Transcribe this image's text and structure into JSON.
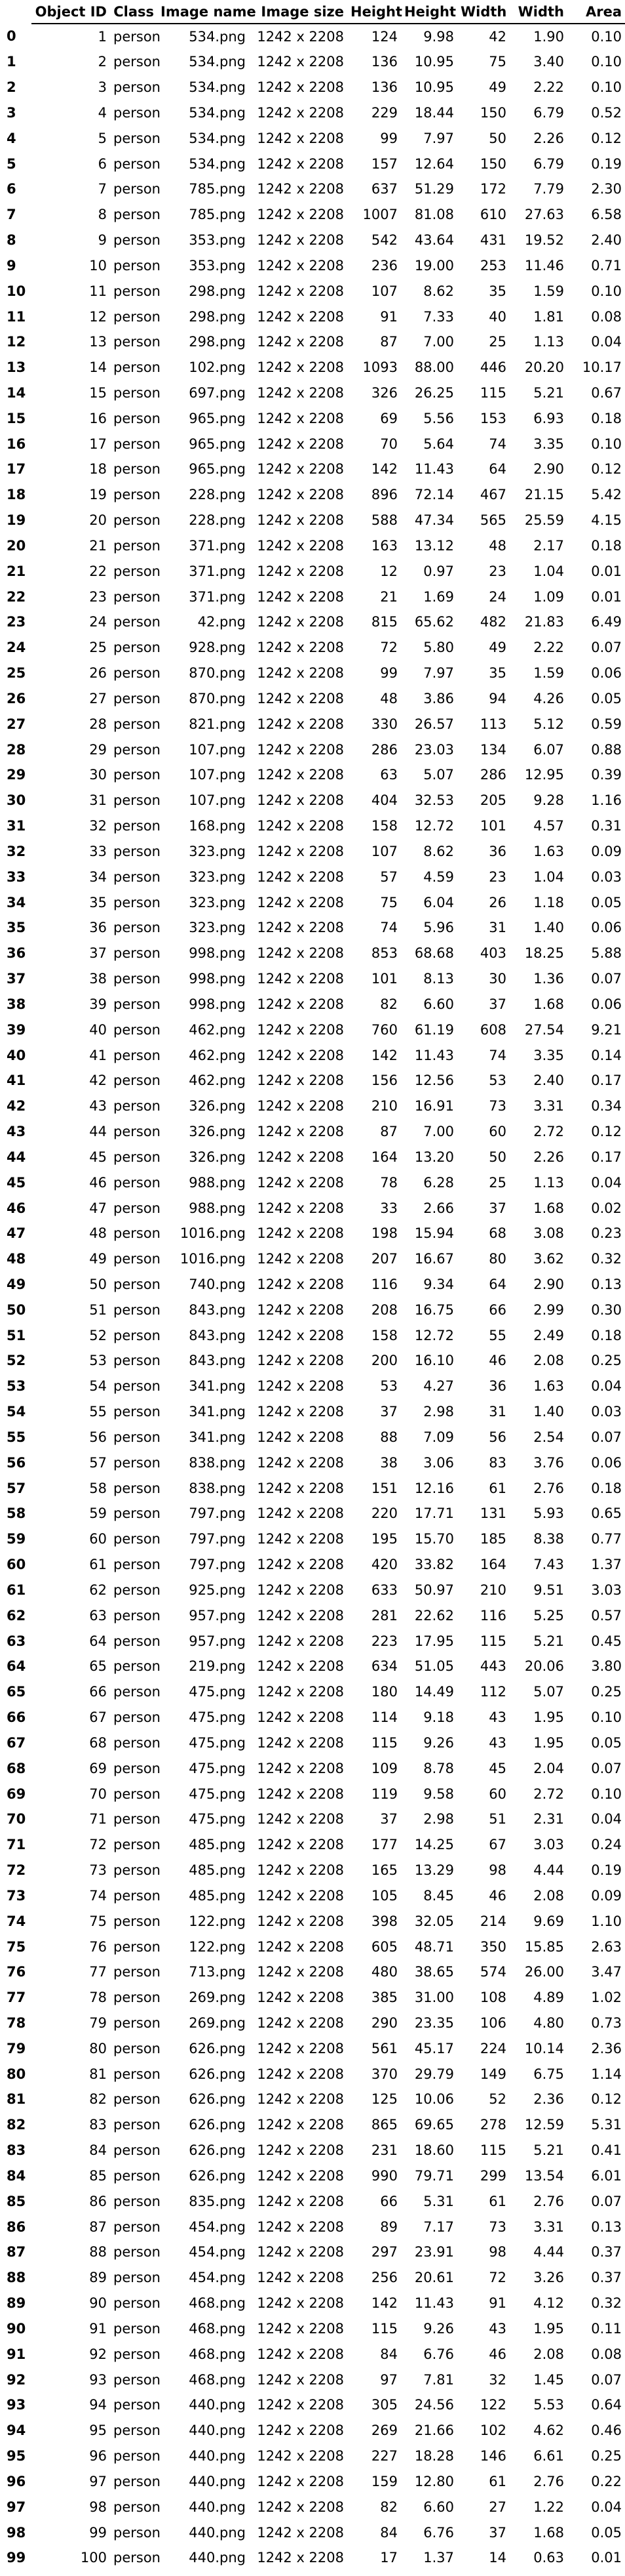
{
  "columns": [
    "Object ID",
    "Class",
    "Image name",
    "Image size",
    "Height",
    "Height",
    "Width",
    "Width",
    "Area"
  ],
  "rows": [
    [
      "0",
      "1",
      "person",
      "534.png",
      "1242 x 2208",
      "124",
      "9.98",
      "42",
      "1.90",
      "0.10"
    ],
    [
      "1",
      "2",
      "person",
      "534.png",
      "1242 x 2208",
      "136",
      "10.95",
      "75",
      "3.40",
      "0.10"
    ],
    [
      "2",
      "3",
      "person",
      "534.png",
      "1242 x 2208",
      "136",
      "10.95",
      "49",
      "2.22",
      "0.10"
    ],
    [
      "3",
      "4",
      "person",
      "534.png",
      "1242 x 2208",
      "229",
      "18.44",
      "150",
      "6.79",
      "0.52"
    ],
    [
      "4",
      "5",
      "person",
      "534.png",
      "1242 x 2208",
      "99",
      "7.97",
      "50",
      "2.26",
      "0.12"
    ],
    [
      "5",
      "6",
      "person",
      "534.png",
      "1242 x 2208",
      "157",
      "12.64",
      "150",
      "6.79",
      "0.19"
    ],
    [
      "6",
      "7",
      "person",
      "785.png",
      "1242 x 2208",
      "637",
      "51.29",
      "172",
      "7.79",
      "2.30"
    ],
    [
      "7",
      "8",
      "person",
      "785.png",
      "1242 x 2208",
      "1007",
      "81.08",
      "610",
      "27.63",
      "6.58"
    ],
    [
      "8",
      "9",
      "person",
      "353.png",
      "1242 x 2208",
      "542",
      "43.64",
      "431",
      "19.52",
      "2.40"
    ],
    [
      "9",
      "10",
      "person",
      "353.png",
      "1242 x 2208",
      "236",
      "19.00",
      "253",
      "11.46",
      "0.71"
    ],
    [
      "10",
      "11",
      "person",
      "298.png",
      "1242 x 2208",
      "107",
      "8.62",
      "35",
      "1.59",
      "0.10"
    ],
    [
      "11",
      "12",
      "person",
      "298.png",
      "1242 x 2208",
      "91",
      "7.33",
      "40",
      "1.81",
      "0.08"
    ],
    [
      "12",
      "13",
      "person",
      "298.png",
      "1242 x 2208",
      "87",
      "7.00",
      "25",
      "1.13",
      "0.04"
    ],
    [
      "13",
      "14",
      "person",
      "102.png",
      "1242 x 2208",
      "1093",
      "88.00",
      "446",
      "20.20",
      "10.17"
    ],
    [
      "14",
      "15",
      "person",
      "697.png",
      "1242 x 2208",
      "326",
      "26.25",
      "115",
      "5.21",
      "0.67"
    ],
    [
      "15",
      "16",
      "person",
      "965.png",
      "1242 x 2208",
      "69",
      "5.56",
      "153",
      "6.93",
      "0.18"
    ],
    [
      "16",
      "17",
      "person",
      "965.png",
      "1242 x 2208",
      "70",
      "5.64",
      "74",
      "3.35",
      "0.10"
    ],
    [
      "17",
      "18",
      "person",
      "965.png",
      "1242 x 2208",
      "142",
      "11.43",
      "64",
      "2.90",
      "0.12"
    ],
    [
      "18",
      "19",
      "person",
      "228.png",
      "1242 x 2208",
      "896",
      "72.14",
      "467",
      "21.15",
      "5.42"
    ],
    [
      "19",
      "20",
      "person",
      "228.png",
      "1242 x 2208",
      "588",
      "47.34",
      "565",
      "25.59",
      "4.15"
    ],
    [
      "20",
      "21",
      "person",
      "371.png",
      "1242 x 2208",
      "163",
      "13.12",
      "48",
      "2.17",
      "0.18"
    ],
    [
      "21",
      "22",
      "person",
      "371.png",
      "1242 x 2208",
      "12",
      "0.97",
      "23",
      "1.04",
      "0.01"
    ],
    [
      "22",
      "23",
      "person",
      "371.png",
      "1242 x 2208",
      "21",
      "1.69",
      "24",
      "1.09",
      "0.01"
    ],
    [
      "23",
      "24",
      "person",
      "42.png",
      "1242 x 2208",
      "815",
      "65.62",
      "482",
      "21.83",
      "6.49"
    ],
    [
      "24",
      "25",
      "person",
      "928.png",
      "1242 x 2208",
      "72",
      "5.80",
      "49",
      "2.22",
      "0.07"
    ],
    [
      "25",
      "26",
      "person",
      "870.png",
      "1242 x 2208",
      "99",
      "7.97",
      "35",
      "1.59",
      "0.06"
    ],
    [
      "26",
      "27",
      "person",
      "870.png",
      "1242 x 2208",
      "48",
      "3.86",
      "94",
      "4.26",
      "0.05"
    ],
    [
      "27",
      "28",
      "person",
      "821.png",
      "1242 x 2208",
      "330",
      "26.57",
      "113",
      "5.12",
      "0.59"
    ],
    [
      "28",
      "29",
      "person",
      "107.png",
      "1242 x 2208",
      "286",
      "23.03",
      "134",
      "6.07",
      "0.88"
    ],
    [
      "29",
      "30",
      "person",
      "107.png",
      "1242 x 2208",
      "63",
      "5.07",
      "286",
      "12.95",
      "0.39"
    ],
    [
      "30",
      "31",
      "person",
      "107.png",
      "1242 x 2208",
      "404",
      "32.53",
      "205",
      "9.28",
      "1.16"
    ],
    [
      "31",
      "32",
      "person",
      "168.png",
      "1242 x 2208",
      "158",
      "12.72",
      "101",
      "4.57",
      "0.31"
    ],
    [
      "32",
      "33",
      "person",
      "323.png",
      "1242 x 2208",
      "107",
      "8.62",
      "36",
      "1.63",
      "0.09"
    ],
    [
      "33",
      "34",
      "person",
      "323.png",
      "1242 x 2208",
      "57",
      "4.59",
      "23",
      "1.04",
      "0.03"
    ],
    [
      "34",
      "35",
      "person",
      "323.png",
      "1242 x 2208",
      "75",
      "6.04",
      "26",
      "1.18",
      "0.05"
    ],
    [
      "35",
      "36",
      "person",
      "323.png",
      "1242 x 2208",
      "74",
      "5.96",
      "31",
      "1.40",
      "0.06"
    ],
    [
      "36",
      "37",
      "person",
      "998.png",
      "1242 x 2208",
      "853",
      "68.68",
      "403",
      "18.25",
      "5.88"
    ],
    [
      "37",
      "38",
      "person",
      "998.png",
      "1242 x 2208",
      "101",
      "8.13",
      "30",
      "1.36",
      "0.07"
    ],
    [
      "38",
      "39",
      "person",
      "998.png",
      "1242 x 2208",
      "82",
      "6.60",
      "37",
      "1.68",
      "0.06"
    ],
    [
      "39",
      "40",
      "person",
      "462.png",
      "1242 x 2208",
      "760",
      "61.19",
      "608",
      "27.54",
      "9.21"
    ],
    [
      "40",
      "41",
      "person",
      "462.png",
      "1242 x 2208",
      "142",
      "11.43",
      "74",
      "3.35",
      "0.14"
    ],
    [
      "41",
      "42",
      "person",
      "462.png",
      "1242 x 2208",
      "156",
      "12.56",
      "53",
      "2.40",
      "0.17"
    ],
    [
      "42",
      "43",
      "person",
      "326.png",
      "1242 x 2208",
      "210",
      "16.91",
      "73",
      "3.31",
      "0.34"
    ],
    [
      "43",
      "44",
      "person",
      "326.png",
      "1242 x 2208",
      "87",
      "7.00",
      "60",
      "2.72",
      "0.12"
    ],
    [
      "44",
      "45",
      "person",
      "326.png",
      "1242 x 2208",
      "164",
      "13.20",
      "50",
      "2.26",
      "0.17"
    ],
    [
      "45",
      "46",
      "person",
      "988.png",
      "1242 x 2208",
      "78",
      "6.28",
      "25",
      "1.13",
      "0.04"
    ],
    [
      "46",
      "47",
      "person",
      "988.png",
      "1242 x 2208",
      "33",
      "2.66",
      "37",
      "1.68",
      "0.02"
    ],
    [
      "47",
      "48",
      "person",
      "1016.png",
      "1242 x 2208",
      "198",
      "15.94",
      "68",
      "3.08",
      "0.23"
    ],
    [
      "48",
      "49",
      "person",
      "1016.png",
      "1242 x 2208",
      "207",
      "16.67",
      "80",
      "3.62",
      "0.32"
    ],
    [
      "49",
      "50",
      "person",
      "740.png",
      "1242 x 2208",
      "116",
      "9.34",
      "64",
      "2.90",
      "0.13"
    ],
    [
      "50",
      "51",
      "person",
      "843.png",
      "1242 x 2208",
      "208",
      "16.75",
      "66",
      "2.99",
      "0.30"
    ],
    [
      "51",
      "52",
      "person",
      "843.png",
      "1242 x 2208",
      "158",
      "12.72",
      "55",
      "2.49",
      "0.18"
    ],
    [
      "52",
      "53",
      "person",
      "843.png",
      "1242 x 2208",
      "200",
      "16.10",
      "46",
      "2.08",
      "0.25"
    ],
    [
      "53",
      "54",
      "person",
      "341.png",
      "1242 x 2208",
      "53",
      "4.27",
      "36",
      "1.63",
      "0.04"
    ],
    [
      "54",
      "55",
      "person",
      "341.png",
      "1242 x 2208",
      "37",
      "2.98",
      "31",
      "1.40",
      "0.03"
    ],
    [
      "55",
      "56",
      "person",
      "341.png",
      "1242 x 2208",
      "88",
      "7.09",
      "56",
      "2.54",
      "0.07"
    ],
    [
      "56",
      "57",
      "person",
      "838.png",
      "1242 x 2208",
      "38",
      "3.06",
      "83",
      "3.76",
      "0.06"
    ],
    [
      "57",
      "58",
      "person",
      "838.png",
      "1242 x 2208",
      "151",
      "12.16",
      "61",
      "2.76",
      "0.18"
    ],
    [
      "58",
      "59",
      "person",
      "797.png",
      "1242 x 2208",
      "220",
      "17.71",
      "131",
      "5.93",
      "0.65"
    ],
    [
      "59",
      "60",
      "person",
      "797.png",
      "1242 x 2208",
      "195",
      "15.70",
      "185",
      "8.38",
      "0.77"
    ],
    [
      "60",
      "61",
      "person",
      "797.png",
      "1242 x 2208",
      "420",
      "33.82",
      "164",
      "7.43",
      "1.37"
    ],
    [
      "61",
      "62",
      "person",
      "925.png",
      "1242 x 2208",
      "633",
      "50.97",
      "210",
      "9.51",
      "3.03"
    ],
    [
      "62",
      "63",
      "person",
      "957.png",
      "1242 x 2208",
      "281",
      "22.62",
      "116",
      "5.25",
      "0.57"
    ],
    [
      "63",
      "64",
      "person",
      "957.png",
      "1242 x 2208",
      "223",
      "17.95",
      "115",
      "5.21",
      "0.45"
    ],
    [
      "64",
      "65",
      "person",
      "219.png",
      "1242 x 2208",
      "634",
      "51.05",
      "443",
      "20.06",
      "3.80"
    ],
    [
      "65",
      "66",
      "person",
      "475.png",
      "1242 x 2208",
      "180",
      "14.49",
      "112",
      "5.07",
      "0.25"
    ],
    [
      "66",
      "67",
      "person",
      "475.png",
      "1242 x 2208",
      "114",
      "9.18",
      "43",
      "1.95",
      "0.10"
    ],
    [
      "67",
      "68",
      "person",
      "475.png",
      "1242 x 2208",
      "115",
      "9.26",
      "43",
      "1.95",
      "0.05"
    ],
    [
      "68",
      "69",
      "person",
      "475.png",
      "1242 x 2208",
      "109",
      "8.78",
      "45",
      "2.04",
      "0.07"
    ],
    [
      "69",
      "70",
      "person",
      "475.png",
      "1242 x 2208",
      "119",
      "9.58",
      "60",
      "2.72",
      "0.10"
    ],
    [
      "70",
      "71",
      "person",
      "475.png",
      "1242 x 2208",
      "37",
      "2.98",
      "51",
      "2.31",
      "0.04"
    ],
    [
      "71",
      "72",
      "person",
      "485.png",
      "1242 x 2208",
      "177",
      "14.25",
      "67",
      "3.03",
      "0.24"
    ],
    [
      "72",
      "73",
      "person",
      "485.png",
      "1242 x 2208",
      "165",
      "13.29",
      "98",
      "4.44",
      "0.19"
    ],
    [
      "73",
      "74",
      "person",
      "485.png",
      "1242 x 2208",
      "105",
      "8.45",
      "46",
      "2.08",
      "0.09"
    ],
    [
      "74",
      "75",
      "person",
      "122.png",
      "1242 x 2208",
      "398",
      "32.05",
      "214",
      "9.69",
      "1.10"
    ],
    [
      "75",
      "76",
      "person",
      "122.png",
      "1242 x 2208",
      "605",
      "48.71",
      "350",
      "15.85",
      "2.63"
    ],
    [
      "76",
      "77",
      "person",
      "713.png",
      "1242 x 2208",
      "480",
      "38.65",
      "574",
      "26.00",
      "3.47"
    ],
    [
      "77",
      "78",
      "person",
      "269.png",
      "1242 x 2208",
      "385",
      "31.00",
      "108",
      "4.89",
      "1.02"
    ],
    [
      "78",
      "79",
      "person",
      "269.png",
      "1242 x 2208",
      "290",
      "23.35",
      "106",
      "4.80",
      "0.73"
    ],
    [
      "79",
      "80",
      "person",
      "626.png",
      "1242 x 2208",
      "561",
      "45.17",
      "224",
      "10.14",
      "2.36"
    ],
    [
      "80",
      "81",
      "person",
      "626.png",
      "1242 x 2208",
      "370",
      "29.79",
      "149",
      "6.75",
      "1.14"
    ],
    [
      "81",
      "82",
      "person",
      "626.png",
      "1242 x 2208",
      "125",
      "10.06",
      "52",
      "2.36",
      "0.12"
    ],
    [
      "82",
      "83",
      "person",
      "626.png",
      "1242 x 2208",
      "865",
      "69.65",
      "278",
      "12.59",
      "5.31"
    ],
    [
      "83",
      "84",
      "person",
      "626.png",
      "1242 x 2208",
      "231",
      "18.60",
      "115",
      "5.21",
      "0.41"
    ],
    [
      "84",
      "85",
      "person",
      "626.png",
      "1242 x 2208",
      "990",
      "79.71",
      "299",
      "13.54",
      "6.01"
    ],
    [
      "85",
      "86",
      "person",
      "835.png",
      "1242 x 2208",
      "66",
      "5.31",
      "61",
      "2.76",
      "0.07"
    ],
    [
      "86",
      "87",
      "person",
      "454.png",
      "1242 x 2208",
      "89",
      "7.17",
      "73",
      "3.31",
      "0.13"
    ],
    [
      "87",
      "88",
      "person",
      "454.png",
      "1242 x 2208",
      "297",
      "23.91",
      "98",
      "4.44",
      "0.37"
    ],
    [
      "88",
      "89",
      "person",
      "454.png",
      "1242 x 2208",
      "256",
      "20.61",
      "72",
      "3.26",
      "0.37"
    ],
    [
      "89",
      "90",
      "person",
      "468.png",
      "1242 x 2208",
      "142",
      "11.43",
      "91",
      "4.12",
      "0.32"
    ],
    [
      "90",
      "91",
      "person",
      "468.png",
      "1242 x 2208",
      "115",
      "9.26",
      "43",
      "1.95",
      "0.11"
    ],
    [
      "91",
      "92",
      "person",
      "468.png",
      "1242 x 2208",
      "84",
      "6.76",
      "46",
      "2.08",
      "0.08"
    ],
    [
      "92",
      "93",
      "person",
      "468.png",
      "1242 x 2208",
      "97",
      "7.81",
      "32",
      "1.45",
      "0.07"
    ],
    [
      "93",
      "94",
      "person",
      "440.png",
      "1242 x 2208",
      "305",
      "24.56",
      "122",
      "5.53",
      "0.64"
    ],
    [
      "94",
      "95",
      "person",
      "440.png",
      "1242 x 2208",
      "269",
      "21.66",
      "102",
      "4.62",
      "0.46"
    ],
    [
      "95",
      "96",
      "person",
      "440.png",
      "1242 x 2208",
      "227",
      "18.28",
      "146",
      "6.61",
      "0.25"
    ],
    [
      "96",
      "97",
      "person",
      "440.png",
      "1242 x 2208",
      "159",
      "12.80",
      "61",
      "2.76",
      "0.22"
    ],
    [
      "97",
      "98",
      "person",
      "440.png",
      "1242 x 2208",
      "82",
      "6.60",
      "27",
      "1.22",
      "0.04"
    ],
    [
      "98",
      "99",
      "person",
      "440.png",
      "1242 x 2208",
      "84",
      "6.76",
      "37",
      "1.68",
      "0.05"
    ],
    [
      "99",
      "100",
      "person",
      "440.png",
      "1242 x 2208",
      "17",
      "1.37",
      "14",
      "0.63",
      "0.01"
    ]
  ]
}
